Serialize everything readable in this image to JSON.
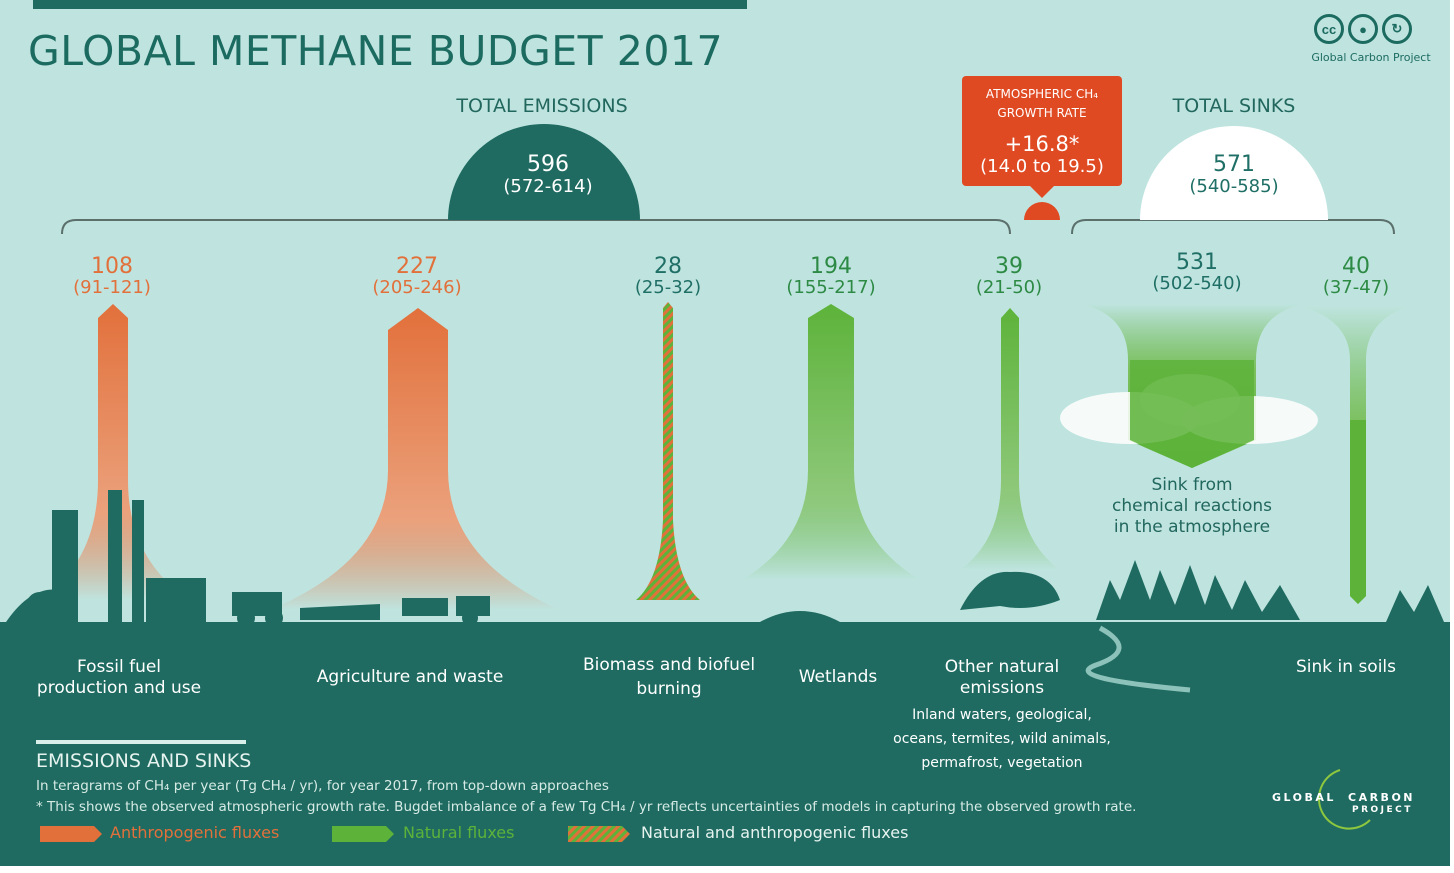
{
  "title": "GLOBAL METHANE BUDGET 2017",
  "license_icons": [
    "cc-icon",
    "attribution-icon",
    "share-alike-icon"
  ],
  "publisher": "Global Carbon Project",
  "total_emissions": {
    "label": "TOTAL EMISSIONS",
    "value": "596",
    "range": "(572-614)"
  },
  "total_sinks": {
    "label": "TOTAL SINKS",
    "value": "571",
    "range": "(540-585)"
  },
  "growth_rate": {
    "line1": "ATMOSPHERIC CH₄",
    "line2": "GROWTH RATE",
    "value": "+16.8*",
    "range": "(14.0 to 19.5)"
  },
  "fluxes": [
    {
      "value": "108",
      "range": "(91-121)",
      "label_line1": "Fossil fuel",
      "label_line2": "production and use",
      "type": "anthropogenic"
    },
    {
      "value": "227",
      "range": "(205-246)",
      "label_line1": "Agriculture and waste",
      "label_line2": "",
      "type": "anthropogenic"
    },
    {
      "value": "28",
      "range": "(25-32)",
      "label_line1": "Biomass and biofuel",
      "label_line2": "burning",
      "type": "mixed"
    },
    {
      "value": "194",
      "range": "(155-217)",
      "label_line1": "Wetlands",
      "label_line2": "",
      "type": "natural"
    },
    {
      "value": "39",
      "range": "(21-50)",
      "label_line1": "Other natural",
      "label_line2": "emissions",
      "type": "natural",
      "detail_lines": [
        "Inland waters, geological,",
        "oceans, termites, wild animals,",
        "permafrost, vegetation"
      ]
    }
  ],
  "sinks": [
    {
      "value": "531",
      "range": "(502-540)",
      "label_lines": [
        "Sink from",
        "chemical reactions",
        "in the atmosphere"
      ]
    },
    {
      "value": "40",
      "range": "(37-47)",
      "label": "Sink in soils"
    }
  ],
  "legend": {
    "title": "EMISSIONS AND SINKS",
    "units_note": "In teragrams of CH₄ per year (Tg CH₄ / yr),  for year 2017, from top-down approaches",
    "footnote": "* This shows the observed atmospheric growth rate. Bugdet imbalance of a few Tg  CH₄ / yr reflects uncertainties of models in capturing the observed growth rate.",
    "items": [
      {
        "label": "Anthropogenic fluxes",
        "color": "#e2703b"
      },
      {
        "label": "Natural fluxes",
        "color": "#5db33a"
      },
      {
        "label": "Natural and anthropogenic fluxes",
        "color": "#e2703b"
      }
    ]
  },
  "gcp_logo": {
    "word1": "GLOBAL",
    "word2": "CARBON",
    "word3": "PROJECT"
  },
  "colors": {
    "background": "#bfe4df",
    "ground": "#1f6b61",
    "anthropogenic": "#e2703b",
    "natural": "#5db33a",
    "growth_box": "#e04a23"
  }
}
